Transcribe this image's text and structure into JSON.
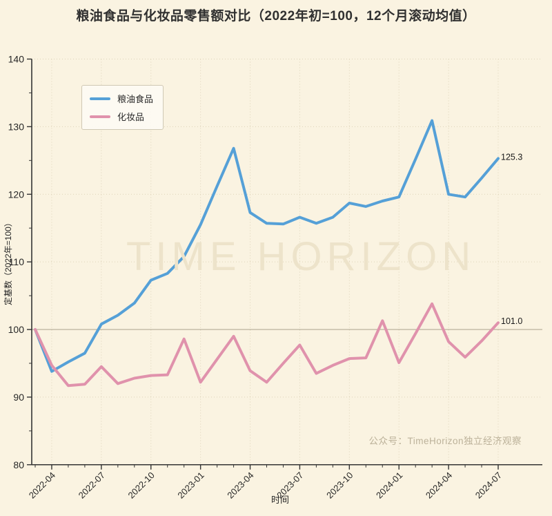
{
  "title": "粮油食品与化妆品零售额对比（2022年初=100，12个月滚动均值）",
  "watermark": "TIME HORIZON",
  "attribution": "公众号：TimeHorizon独立经济观察",
  "colors": {
    "background": "#faf3e1",
    "grid": "#ddd3b8",
    "baseline_100": "#a9a18d",
    "axis": "#333333",
    "tick_text": "#262626",
    "watermark": "#ede3ca",
    "attribution": "#bcb29a"
  },
  "legend": {
    "items": [
      {
        "label": "粮油食品"
      },
      {
        "label": "化妆品"
      }
    ]
  },
  "chart_data": {
    "type": "line",
    "title": "粮油食品与化妆品零售额对比（2022年初=100，12个月滚动均值）",
    "xlabel": "时间",
    "ylabel": "定基数（2022年=100）",
    "ylim": [
      80,
      140
    ],
    "yticks": [
      80,
      90,
      100,
      110,
      120,
      130,
      140
    ],
    "baseline": 100,
    "grid": true,
    "legend_position": "upper left",
    "x": [
      "2022-03",
      "2022-04",
      "2022-05",
      "2022-06",
      "2022-07",
      "2022-08",
      "2022-09",
      "2022-10",
      "2022-11",
      "2022-12",
      "2023-01",
      "2023-02",
      "2023-03",
      "2023-04",
      "2023-05",
      "2023-06",
      "2023-07",
      "2023-08",
      "2023-09",
      "2023-10",
      "2023-11",
      "2023-12",
      "2024-01",
      "2024-02",
      "2024-03",
      "2024-04",
      "2024-05",
      "2024-06",
      "2024-07"
    ],
    "xticks": [
      "2022-04",
      "2022-07",
      "2022-10",
      "2023-01",
      "2023-04",
      "2023-07",
      "2023-10",
      "2024-01",
      "2024-04",
      "2024-07"
    ],
    "series": [
      {
        "name": "粮油食品",
        "color": "#55a0d7",
        "end_label": "125.3",
        "values": [
          100.0,
          93.8,
          95.2,
          96.5,
          100.8,
          102.1,
          103.9,
          107.3,
          108.3,
          110.8,
          115.5,
          121.2,
          126.8,
          117.3,
          115.7,
          115.6,
          116.6,
          115.7,
          116.6,
          118.7,
          118.2,
          119.0,
          119.6,
          125.2,
          130.9,
          120.0,
          119.6,
          122.4,
          125.3
        ]
      },
      {
        "name": "化妆品",
        "color": "#e092ac",
        "end_label": "101.0",
        "values": [
          100.0,
          94.7,
          91.7,
          91.9,
          94.5,
          92.0,
          92.8,
          93.2,
          93.3,
          98.6,
          92.2,
          95.6,
          99.0,
          93.9,
          92.2,
          95.0,
          97.7,
          93.5,
          94.7,
          95.7,
          95.8,
          101.3,
          95.1,
          99.4,
          103.8,
          98.2,
          95.9,
          98.3,
          101.0
        ]
      }
    ]
  }
}
